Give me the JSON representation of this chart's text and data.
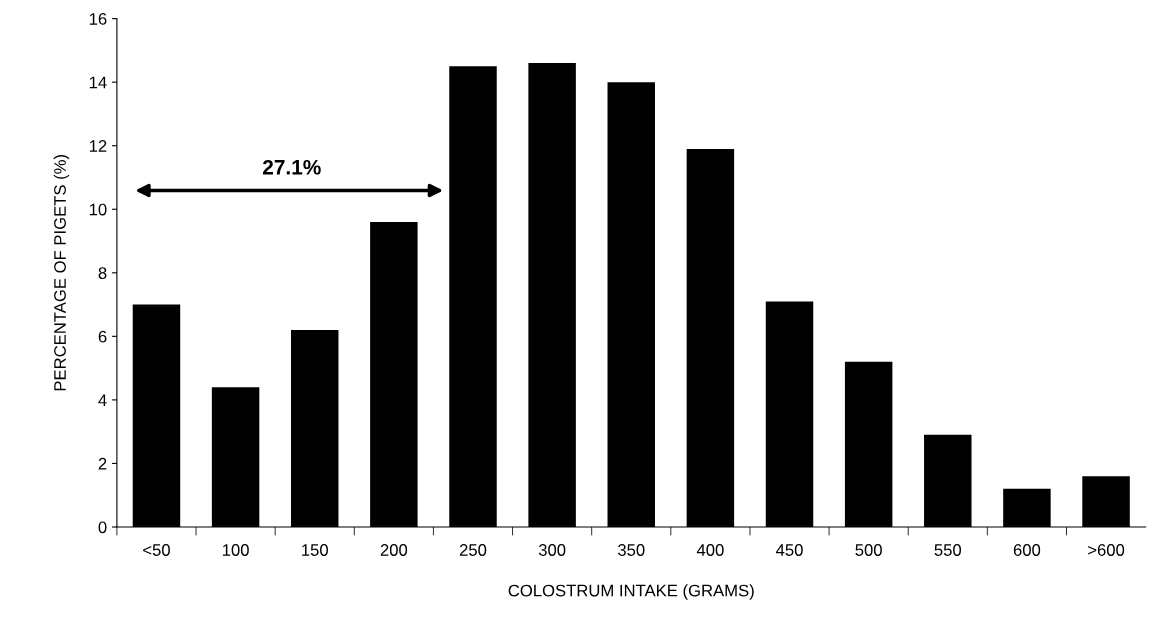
{
  "chart_data": {
    "type": "bar",
    "xlabel": "COLOSTRUM INTAKE (GRAMS)",
    "ylabel": "PERCENTAGE OF PIGETS (%)",
    "categories": [
      "<50",
      "100",
      "150",
      "200",
      "250",
      "300",
      "350",
      "400",
      "450",
      "500",
      "550",
      "600",
      ">600"
    ],
    "values": [
      7.0,
      4.4,
      6.2,
      9.6,
      14.5,
      14.6,
      14.0,
      11.9,
      7.1,
      5.2,
      2.9,
      1.2,
      1.6
    ],
    "color": "#000000",
    "ylim": [
      0,
      16
    ],
    "yticks": [
      0,
      2,
      4,
      6,
      8,
      10,
      12,
      14,
      16
    ],
    "grid": false,
    "legend": false,
    "annotations": [
      "27.1%"
    ]
  }
}
